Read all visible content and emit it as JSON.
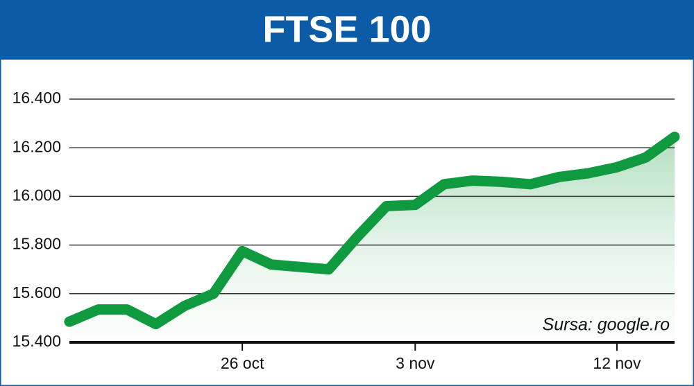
{
  "chart_data": {
    "type": "line",
    "title": "FTSE 100",
    "annotation": "Sursa: google.ro",
    "categories": [
      null,
      null,
      null,
      null,
      null,
      null,
      "26 oct",
      null,
      null,
      null,
      null,
      null,
      "3 nov",
      null,
      null,
      null,
      null,
      null,
      null,
      "12 nov",
      null,
      null
    ],
    "series": [
      {
        "name": "FTSE 100",
        "color": "#0f9a3f",
        "values": [
          15485,
          15535,
          15535,
          15475,
          15550,
          15600,
          15775,
          15720,
          15710,
          15700,
          15835,
          15960,
          15965,
          16050,
          16065,
          16060,
          16050,
          16080,
          16095,
          16120,
          16160,
          16245
        ]
      }
    ],
    "ylim": [
      15400,
      16400
    ],
    "yticks": [
      {
        "value": 15400,
        "label": "15.400"
      },
      {
        "value": 15600,
        "label": "15.600"
      },
      {
        "value": 15800,
        "label": "15.800"
      },
      {
        "value": 16000,
        "label": "16.000"
      },
      {
        "value": 16200,
        "label": "16.200"
      },
      {
        "value": 16400,
        "label": "16.400"
      }
    ],
    "grid": true
  }
}
